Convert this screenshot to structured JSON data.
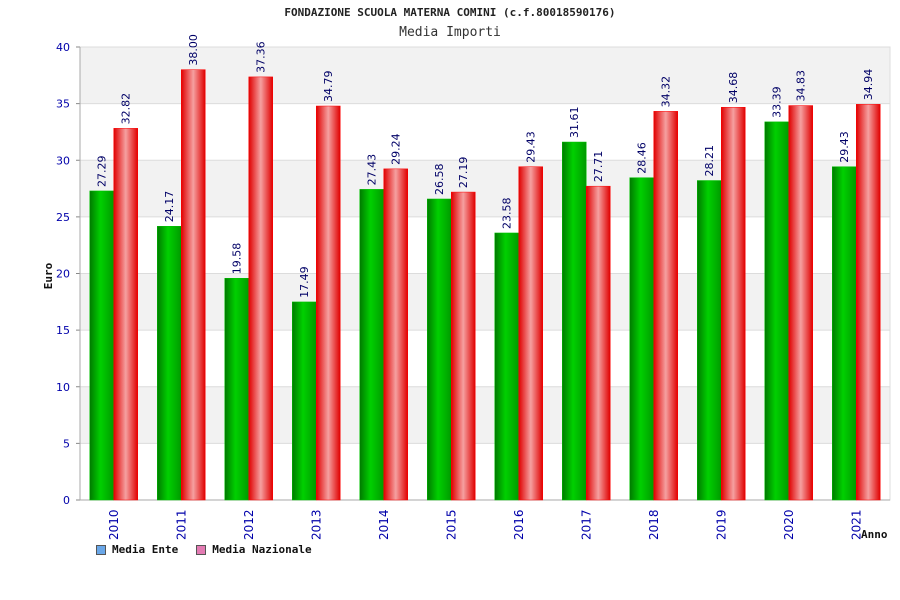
{
  "chart_title": "FONDAZIONE SCUOLA MATERNA COMINI (c.f.80018590176)",
  "colors": {
    "ente": "#00c000",
    "nazionale": "#ff0000",
    "legend_ente": "#6aa7e8",
    "legend_nazionale": "#e37bb3",
    "axis_text": "#0000aa",
    "plot_band": "#f2f2f2"
  },
  "chart_data": {
    "type": "bar",
    "title": "Media Importi",
    "xlabel": "Anno",
    "ylabel": "Euro",
    "ylim": [
      0,
      40
    ],
    "yticks": [
      0,
      5,
      10,
      15,
      20,
      25,
      30,
      35,
      40
    ],
    "categories": [
      "2010",
      "2011",
      "2012",
      "2013",
      "2014",
      "2015",
      "2016",
      "2017",
      "2018",
      "2019",
      "2020",
      "2021"
    ],
    "series": [
      {
        "name": "Media Ente",
        "values": [
          27.29,
          24.17,
          19.58,
          17.49,
          27.43,
          26.58,
          23.58,
          31.61,
          28.46,
          28.21,
          33.39,
          29.43
        ],
        "labels": [
          "27.29",
          "24.17",
          "19.58",
          "17.49",
          "27.43",
          "26.58",
          "23.58",
          "31.61",
          "28.46",
          "28.21",
          "33.39",
          "29.43"
        ]
      },
      {
        "name": "Media Nazionale",
        "values": [
          32.82,
          38.0,
          37.36,
          34.79,
          29.24,
          27.19,
          29.43,
          27.71,
          34.32,
          34.68,
          34.83,
          34.94
        ],
        "labels": [
          "32.82",
          "38.00",
          "37.36",
          "34.79",
          "29.24",
          "27.19",
          "29.43",
          "27.71",
          "34.32",
          "34.68",
          "34.83",
          "34.94"
        ]
      }
    ],
    "legend": "bottom-left"
  }
}
